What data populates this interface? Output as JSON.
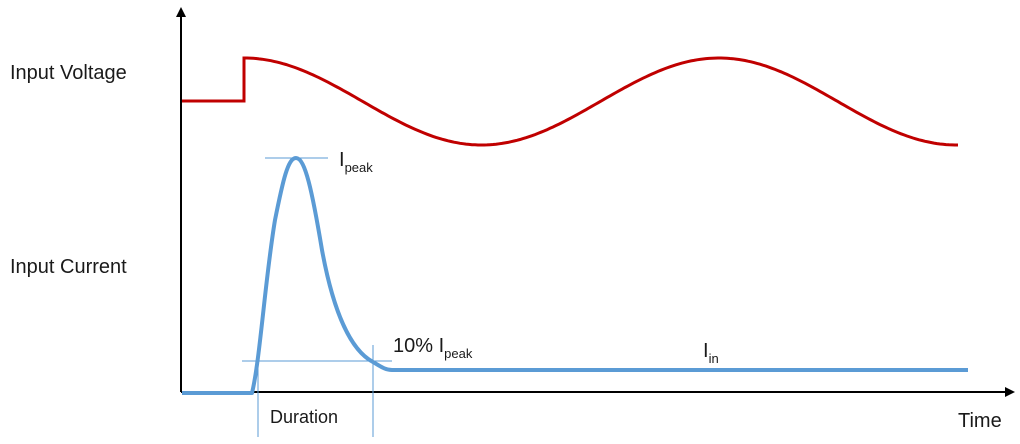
{
  "labels": {
    "input_voltage": "Input Voltage",
    "input_current": "Input Current",
    "time": "Time",
    "duration": "Duration",
    "i_peak_main": "I",
    "i_peak_sub": "peak",
    "ten_pct_prefix": "10% I",
    "ten_pct_sub": "peak",
    "i_in_main": "I",
    "i_in_sub": "in"
  },
  "colors": {
    "voltage": "#c00000",
    "current": "#5b9bd5",
    "guide": "#5b9bd5",
    "axis": "#000000"
  }
}
